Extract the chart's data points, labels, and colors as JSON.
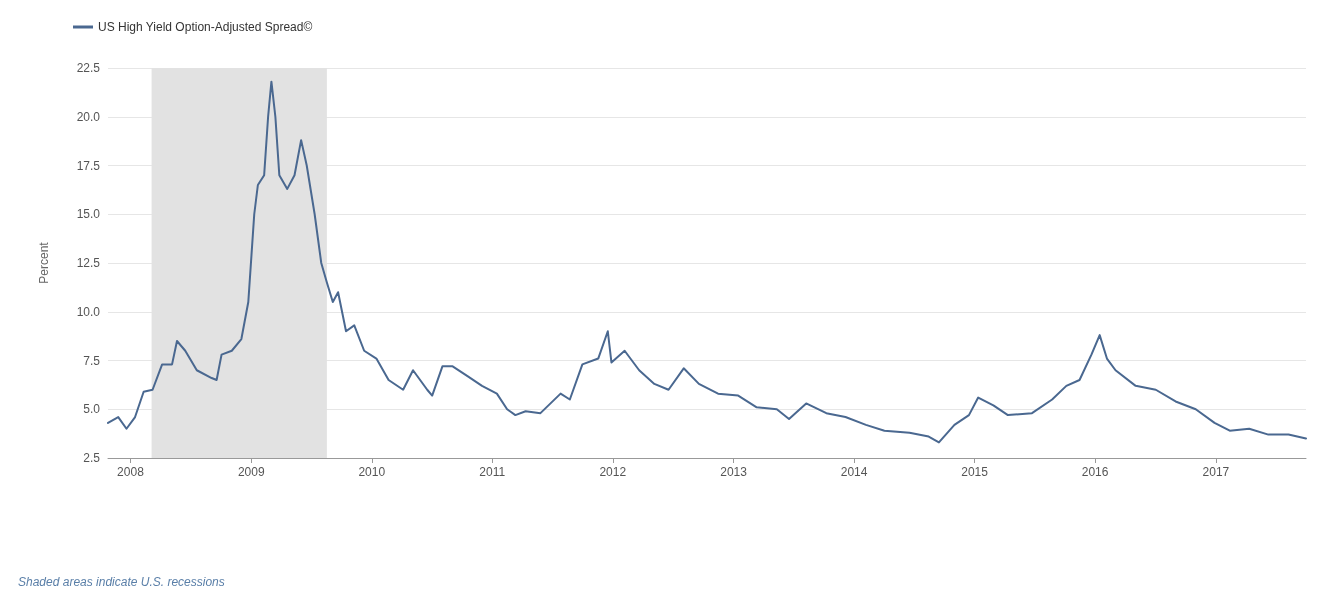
{
  "chart_data": {
    "type": "line",
    "ylabel": "Percent",
    "legend": "top left",
    "grid": "y",
    "marker": "none",
    "line_style": "solid",
    "annotations": [
      "Shaded areas indicate U.S. recessions"
    ],
    "xlim": [
      "2007-10-25",
      "2017-10-01"
    ],
    "xticks": [
      {
        "value": "2008-01-01",
        "label": "2008"
      },
      {
        "value": "2009-01-01",
        "label": "2009"
      },
      {
        "value": "2010-01-01",
        "label": "2010"
      },
      {
        "value": "2011-01-01",
        "label": "2011"
      },
      {
        "value": "2012-01-01",
        "label": "2012"
      },
      {
        "value": "2013-01-01",
        "label": "2013"
      },
      {
        "value": "2014-01-01",
        "label": "2014"
      },
      {
        "value": "2015-01-01",
        "label": "2015"
      },
      {
        "value": "2016-01-01",
        "label": "2016"
      },
      {
        "value": "2017-01-01",
        "label": "2017"
      }
    ],
    "ylim": [
      2.5,
      22.5
    ],
    "yticks": [
      {
        "value": 2.5,
        "label": "2.5"
      },
      {
        "value": 5,
        "label": "5.0"
      },
      {
        "value": 7.5,
        "label": "7.5"
      },
      {
        "value": 10,
        "label": "10.0"
      },
      {
        "value": 12.5,
        "label": "12.5"
      },
      {
        "value": 15,
        "label": "15.0"
      },
      {
        "value": 17.5,
        "label": "17.5"
      },
      {
        "value": 20,
        "label": "20.0"
      },
      {
        "value": 22.5,
        "label": "22.5"
      }
    ],
    "bands": [
      {
        "axis": "x",
        "from": "2008-03-05",
        "to": "2009-08-18",
        "color": "#e2e2e2"
      }
    ],
    "x": [
      "2007-10-25",
      "2007-11-25",
      "2007-12-20",
      "2008-01-15",
      "2008-02-10",
      "2008-03-08",
      "2008-04-06",
      "2008-05-06",
      "2008-05-21",
      "2008-06-15",
      "2008-07-20",
      "2008-09-03",
      "2008-09-18",
      "2008-10-03",
      "2008-11-03",
      "2008-12-02",
      "2008-12-23",
      "2009-01-10",
      "2009-01-21",
      "2009-02-09",
      "2009-02-21",
      "2009-03-03",
      "2009-03-15",
      "2009-03-27",
      "2009-04-20",
      "2009-05-12",
      "2009-06-01",
      "2009-06-18",
      "2009-07-12",
      "2009-08-01",
      "2009-08-18",
      "2009-09-05",
      "2009-09-21",
      "2009-10-15",
      "2009-11-09",
      "2009-12-09",
      "2010-01-15",
      "2010-02-21",
      "2010-04-06",
      "2010-05-06",
      "2010-06-18",
      "2010-07-03",
      "2010-08-03",
      "2010-09-03",
      "2010-10-18",
      "2010-12-01",
      "2011-01-15",
      "2011-02-15",
      "2011-03-12",
      "2011-04-12",
      "2011-05-27",
      "2011-07-27",
      "2011-08-24",
      "2011-10-01",
      "2011-11-18",
      "2011-12-17",
      "2011-12-28",
      "2012-02-06",
      "2012-03-21",
      "2012-05-06",
      "2012-06-18",
      "2012-08-03",
      "2012-09-18",
      "2012-11-15",
      "2013-01-15",
      "2013-03-12",
      "2013-05-12",
      "2013-06-18",
      "2013-08-09",
      "2013-10-09",
      "2013-12-06",
      "2014-02-06",
      "2014-04-03",
      "2014-06-18",
      "2014-08-15",
      "2014-09-15",
      "2014-11-01",
      "2014-12-15",
      "2015-01-12",
      "2015-02-27",
      "2015-04-12",
      "2015-06-24",
      "2015-08-24",
      "2015-10-06",
      "2015-11-15",
      "2015-12-21",
      "2016-01-15",
      "2016-02-06",
      "2016-03-03",
      "2016-05-03",
      "2016-07-03",
      "2016-09-01",
      "2016-11-01",
      "2016-12-28",
      "2017-02-12",
      "2017-04-12",
      "2017-06-09",
      "2017-08-09",
      "2017-10-01"
    ],
    "series": [
      {
        "name": "US High Yield Option-Adjusted Spread©",
        "color": "#4a6890",
        "values": [
          4.3,
          4.6,
          4.0,
          4.6,
          5.9,
          6.0,
          7.3,
          7.3,
          8.5,
          8.0,
          7.0,
          6.6,
          6.5,
          7.8,
          8.0,
          8.6,
          10.5,
          15.0,
          16.5,
          17.0,
          20.0,
          21.8,
          20.0,
          17.0,
          16.3,
          17.0,
          18.8,
          17.5,
          15.0,
          12.5,
          11.5,
          10.5,
          11.0,
          9.0,
          9.3,
          8.0,
          7.6,
          6.5,
          6.0,
          7.0,
          6.0,
          5.7,
          7.2,
          7.2,
          6.7,
          6.2,
          5.8,
          5.0,
          4.7,
          4.9,
          4.8,
          5.8,
          5.5,
          7.3,
          7.6,
          9.0,
          7.4,
          8.0,
          7.0,
          6.3,
          6.0,
          7.1,
          6.3,
          5.8,
          5.7,
          5.1,
          5.0,
          4.5,
          5.3,
          4.8,
          4.6,
          4.2,
          3.9,
          3.8,
          3.6,
          3.3,
          4.2,
          4.7,
          5.6,
          5.2,
          4.7,
          4.8,
          5.5,
          6.2,
          6.5,
          7.8,
          8.8,
          7.6,
          7.0,
          6.2,
          6.0,
          5.4,
          5.0,
          4.3,
          3.9,
          4.0,
          3.7,
          3.7,
          3.5
        ]
      }
    ]
  }
}
